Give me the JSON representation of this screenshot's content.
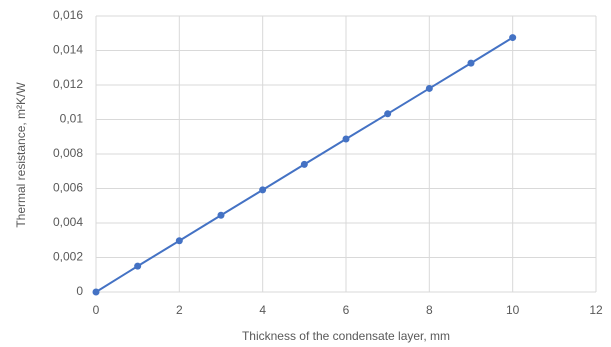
{
  "chart_data": {
    "type": "scatter",
    "connect": true,
    "xlabel": "Thickness of the condensate layer, mm",
    "ylabel": "Thermal resistance, m²K/W",
    "x": [
      0,
      1,
      2,
      3,
      4,
      5,
      6,
      7,
      8,
      9,
      10
    ],
    "values": [
      0,
      0.0015,
      0.00297,
      0.00445,
      0.00592,
      0.0074,
      0.00887,
      0.01033,
      0.0118,
      0.01327,
      0.01475
    ],
    "color": "#4472c4",
    "xlim": [
      0,
      12
    ],
    "xticks": [
      0,
      2,
      4,
      6,
      8,
      10,
      12
    ],
    "ylim": [
      0,
      0.016
    ],
    "yticks": [
      0,
      {
        "value": 0.002,
        "label": "0,002"
      },
      {
        "value": 0.004,
        "label": "0,004"
      },
      {
        "value": 0.006,
        "label": "0,006"
      },
      {
        "value": 0.008,
        "label": "0,008"
      },
      {
        "value": 0.01,
        "label": "0,01"
      },
      {
        "value": 0.012,
        "label": "0,012"
      },
      {
        "value": 0.014,
        "label": "0,014"
      },
      {
        "value": 0.016,
        "label": "0,016"
      }
    ],
    "grid": true
  }
}
